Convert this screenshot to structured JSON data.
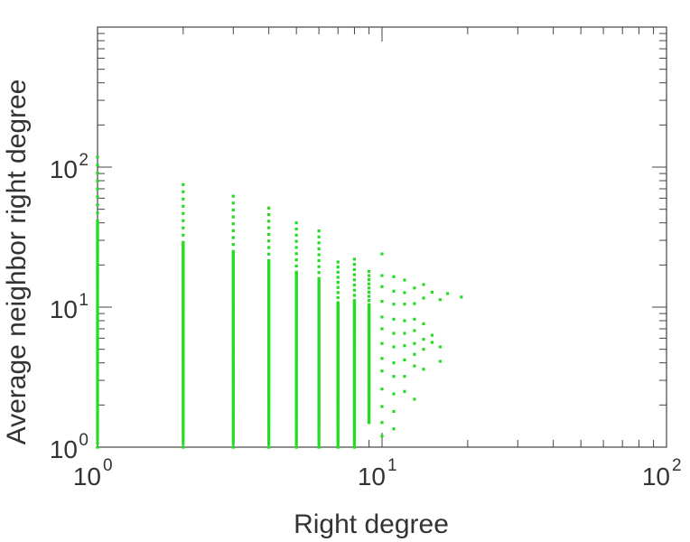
{
  "chart_data": {
    "type": "scatter",
    "xlabel": "Right degree",
    "ylabel": "Average neighbor right degree",
    "x_scale": "log",
    "y_scale": "log",
    "xlim": [
      1,
      100
    ],
    "ylim": [
      1,
      1000
    ],
    "x_ticks": [
      {
        "value": 1,
        "base": "10",
        "exp": "0"
      },
      {
        "value": 10,
        "base": "10",
        "exp": "1"
      },
      {
        "value": 100,
        "base": "10",
        "exp": "2"
      }
    ],
    "y_ticks": [
      {
        "value": 1,
        "base": "10",
        "exp": "0"
      },
      {
        "value": 10,
        "base": "10",
        "exp": "1"
      },
      {
        "value": 100,
        "base": "10",
        "exp": "2"
      }
    ],
    "grid": false,
    "marker_color": "#22dd22",
    "axis_color": "#444444",
    "series": [
      {
        "columns": [
          {
            "x": 1,
            "ymin": 1,
            "ymax": 118
          },
          {
            "x": 2,
            "ymin": 1,
            "ymax": 75
          },
          {
            "x": 3,
            "ymin": 1,
            "ymax": 62
          },
          {
            "x": 4,
            "ymin": 1,
            "ymax": 51
          },
          {
            "x": 5,
            "ymin": 1,
            "ymax": 40
          },
          {
            "x": 6,
            "ymin": 1,
            "ymax": 35
          },
          {
            "x": 7,
            "ymin": 1,
            "ymax": 21
          },
          {
            "x": 8,
            "ymin": 1,
            "ymax": 22
          },
          {
            "x": 9,
            "ymin": 1.5,
            "ymax": 18
          }
        ],
        "points": [
          [
            10,
            24
          ],
          [
            10,
            16.8
          ],
          [
            10,
            14
          ],
          [
            10,
            11
          ],
          [
            10,
            8.5
          ],
          [
            10,
            7
          ],
          [
            10,
            5.5
          ],
          [
            10,
            4.3
          ],
          [
            10,
            3.5
          ],
          [
            10,
            2.6
          ],
          [
            10,
            1.95
          ],
          [
            10,
            1.5
          ],
          [
            10,
            1.2
          ],
          [
            11,
            16.5
          ],
          [
            11,
            13
          ],
          [
            11,
            10.5
          ],
          [
            11,
            8.2
          ],
          [
            11,
            6.5
          ],
          [
            11,
            5.2
          ],
          [
            11,
            4
          ],
          [
            11,
            3.2
          ],
          [
            11,
            2.4
          ],
          [
            11,
            1.8
          ],
          [
            11,
            1.35
          ],
          [
            12,
            15.6
          ],
          [
            12,
            12.7
          ],
          [
            12,
            10.5
          ],
          [
            12,
            8
          ],
          [
            12,
            6.5
          ],
          [
            12,
            5.3
          ],
          [
            12,
            4.2
          ],
          [
            12,
            3.2
          ],
          [
            12,
            2.5
          ],
          [
            13,
            13.7
          ],
          [
            13,
            10.6
          ],
          [
            13,
            8.2
          ],
          [
            13,
            6.8
          ],
          [
            13,
            5.5
          ],
          [
            13,
            4.6
          ],
          [
            13,
            3.8
          ],
          [
            13,
            2.2
          ],
          [
            14,
            14.5
          ],
          [
            14,
            11.6
          ],
          [
            14,
            7.6
          ],
          [
            14,
            5.9
          ],
          [
            14,
            5
          ],
          [
            14,
            3.6
          ],
          [
            15,
            12.8
          ],
          [
            15,
            6.3
          ],
          [
            15,
            5.6
          ],
          [
            16,
            11.3
          ],
          [
            16,
            5.2
          ],
          [
            16,
            4.1
          ],
          [
            17,
            12.5
          ],
          [
            19,
            11.8
          ]
        ]
      }
    ]
  }
}
